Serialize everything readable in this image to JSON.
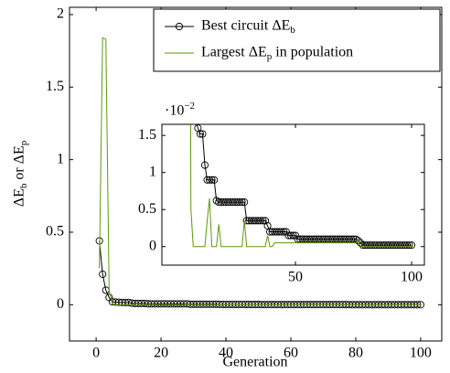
{
  "chart_data": {
    "type": "line",
    "x_label": "Generation",
    "y_label": "ΔE_b or ΔE_p",
    "x": [
      1,
      2,
      3,
      4,
      5,
      6,
      7,
      8,
      9,
      10,
      11,
      12,
      13,
      14,
      15,
      16,
      17,
      18,
      19,
      20,
      21,
      22,
      23,
      24,
      25,
      26,
      27,
      28,
      29,
      30,
      31,
      32,
      33,
      34,
      35,
      36,
      37,
      38,
      39,
      40,
      41,
      42,
      43,
      44,
      45,
      46,
      47,
      48,
      49,
      50,
      51,
      52,
      53,
      54,
      55,
      56,
      57,
      58,
      59,
      60,
      61,
      62,
      63,
      64,
      65,
      66,
      67,
      68,
      69,
      70,
      71,
      72,
      73,
      74,
      75,
      76,
      77,
      78,
      79,
      80,
      81,
      82,
      83,
      84,
      85,
      86,
      87,
      88,
      89,
      90,
      91,
      92,
      93,
      94,
      95,
      96,
      97,
      98,
      99,
      100
    ],
    "series": [
      {
        "name": "Best circuit ΔE_b",
        "color": "#000000",
        "marker": "circle",
        "values": [
          0.44,
          0.21,
          0.1,
          0.05,
          0.02,
          0.0185,
          0.017,
          0.016,
          0.0152,
          0.0152,
          0.011,
          0.009,
          0.009,
          0.009,
          0.009,
          0.0062,
          0.006,
          0.006,
          0.006,
          0.006,
          0.006,
          0.006,
          0.006,
          0.006,
          0.006,
          0.006,
          0.006,
          0.006,
          0.0035,
          0.0035,
          0.0035,
          0.0035,
          0.0035,
          0.0035,
          0.0035,
          0.0035,
          0.0035,
          0.0028,
          0.002,
          0.002,
          0.002,
          0.002,
          0.002,
          0.002,
          0.002,
          0.002,
          0.0015,
          0.0015,
          0.0015,
          0.0015,
          0.001,
          0.001,
          0.001,
          0.001,
          0.001,
          0.001,
          0.001,
          0.001,
          0.001,
          0.001,
          0.001,
          0.001,
          0.001,
          0.001,
          0.001,
          0.001,
          0.001,
          0.001,
          0.001,
          0.001,
          0.001,
          0.001,
          0.001,
          0.001,
          0.001,
          0.001,
          0.0008,
          0.0005,
          0.0002,
          0.0002,
          0.0002,
          0.0002,
          0.0002,
          0.0002,
          0.0002,
          0.0002,
          0.0002,
          0.0002,
          0.0002,
          0.0002,
          0.0002,
          0.0002,
          0.0002,
          0.0002,
          0.0002,
          0.0002,
          0.0002,
          0.0002,
          0.0002,
          0.0002
        ]
      },
      {
        "name": "Largest ΔE_p in population",
        "color": "#5b9a0a",
        "marker": "none",
        "values": [
          0.25,
          1.84,
          1.83,
          0.1,
          0.005,
          0,
          0,
          0,
          0,
          0,
          0,
          0.0035,
          0.0065,
          0,
          0,
          0,
          0.003,
          0,
          0,
          0,
          0,
          0,
          0,
          0,
          0,
          0,
          0,
          0.0035,
          0,
          0,
          0,
          0,
          0,
          0,
          0,
          0,
          0,
          0.0015,
          0,
          0,
          0.0005,
          0.0005,
          0.0005,
          0.0005,
          0.0005,
          0.0005,
          0.0005,
          0.0005,
          0.0005,
          0.0005,
          0.0005,
          0.0005,
          0.0005,
          0.0005,
          0.0005,
          0.0005,
          0.0005,
          0.0005,
          0.0005,
          0.0005,
          0.0005,
          0.0005,
          0.0005,
          0.0005,
          0.0005,
          0.0005,
          0.0005,
          0.0005,
          0.0005,
          0.0005,
          0.0005,
          0.0005,
          0.0005,
          0.0005,
          0.0005,
          0.0005,
          0.0008,
          0,
          0,
          0,
          0,
          0,
          0,
          0,
          0,
          0,
          0,
          0,
          0,
          0,
          0,
          0,
          0,
          0,
          0,
          0,
          0,
          0,
          0,
          0
        ]
      }
    ],
    "xlim": [
      -8.2,
      106.5
    ],
    "ylim": [
      -0.25,
      2.05
    ],
    "xticks": [
      0,
      20,
      40,
      60,
      80,
      100
    ],
    "yticks": [
      0,
      0.5,
      1,
      1.5,
      2
    ],
    "legend": "upper right",
    "inset": {
      "xlim": [
        -7.5,
        105.5
      ],
      "ylim": [
        -0.0025,
        0.0165
      ],
      "xticks": [
        50,
        100
      ],
      "yticks": [
        {
          "value": 0,
          "label": "0"
        },
        {
          "value": 0.005,
          "label": "0.5"
        },
        {
          "value": 0.01,
          "label": "1"
        },
        {
          "value": 0.015,
          "label": "1.5"
        }
      ],
      "scale_label": "·10^−2"
    }
  }
}
